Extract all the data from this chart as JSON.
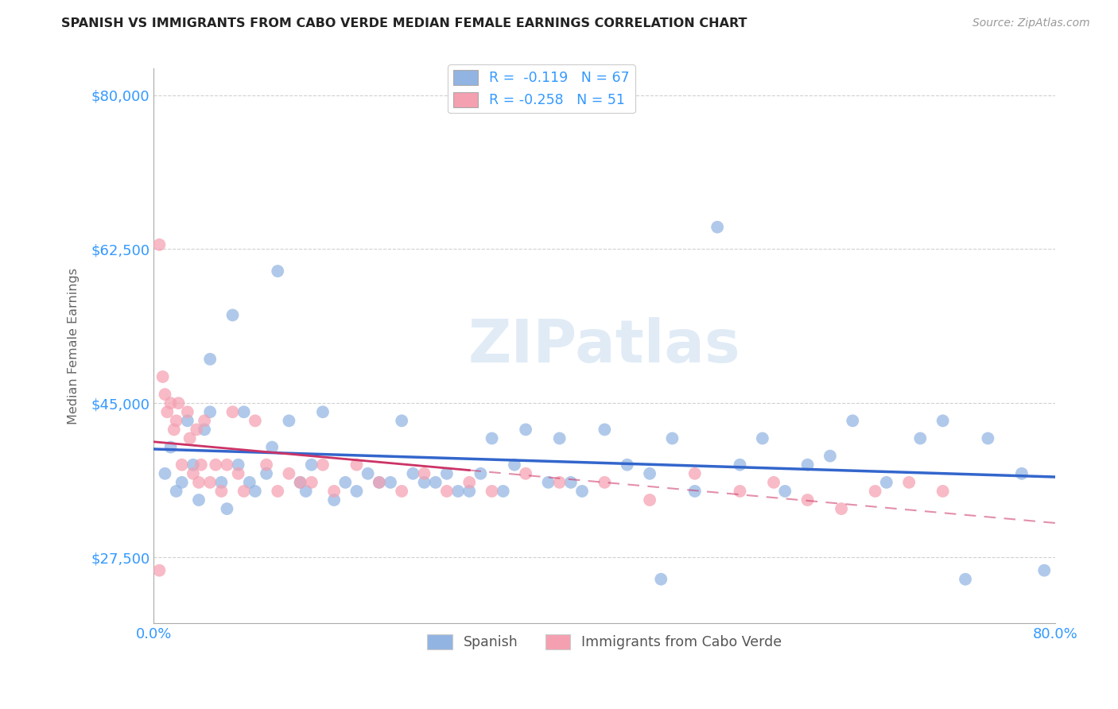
{
  "title": "SPANISH VS IMMIGRANTS FROM CABO VERDE MEDIAN FEMALE EARNINGS CORRELATION CHART",
  "source": "Source: ZipAtlas.com",
  "ylabel": "Median Female Earnings",
  "xlim": [
    0.0,
    0.8
  ],
  "ylim": [
    20000,
    83000
  ],
  "yticks": [
    27500,
    45000,
    62500,
    80000
  ],
  "ytick_labels": [
    "$27,500",
    "$45,000",
    "$62,500",
    "$80,000"
  ],
  "xtick_labels": [
    "0.0%",
    "80.0%"
  ],
  "watermark": "ZIPatlas",
  "background_color": "#ffffff",
  "grid_color": "#cccccc",
  "spanish_color": "#92b4e3",
  "cabo_verde_color": "#f4a0b0",
  "spanish_line_color": "#3366cc",
  "cabo_verde_line_color": "#cc3366",
  "tick_color": "#3399ff",
  "legend_label_spanish": "Spanish",
  "legend_label_cabo": "Immigrants from Cabo Verde",
  "spanish_x": [
    0.01,
    0.015,
    0.02,
    0.025,
    0.03,
    0.035,
    0.04,
    0.045,
    0.05,
    0.05,
    0.06,
    0.065,
    0.07,
    0.075,
    0.08,
    0.085,
    0.09,
    0.1,
    0.105,
    0.11,
    0.12,
    0.13,
    0.135,
    0.14,
    0.15,
    0.16,
    0.17,
    0.18,
    0.19,
    0.2,
    0.21,
    0.22,
    0.23,
    0.24,
    0.25,
    0.26,
    0.27,
    0.28,
    0.29,
    0.3,
    0.31,
    0.32,
    0.33,
    0.35,
    0.36,
    0.37,
    0.38,
    0.4,
    0.42,
    0.44,
    0.45,
    0.46,
    0.48,
    0.5,
    0.52,
    0.54,
    0.56,
    0.58,
    0.6,
    0.62,
    0.65,
    0.68,
    0.7,
    0.72,
    0.74,
    0.77,
    0.79
  ],
  "spanish_y": [
    37000,
    40000,
    35000,
    36000,
    43000,
    38000,
    34000,
    42000,
    50000,
    44000,
    36000,
    33000,
    55000,
    38000,
    44000,
    36000,
    35000,
    37000,
    40000,
    60000,
    43000,
    36000,
    35000,
    38000,
    44000,
    34000,
    36000,
    35000,
    37000,
    36000,
    36000,
    43000,
    37000,
    36000,
    36000,
    37000,
    35000,
    35000,
    37000,
    41000,
    35000,
    38000,
    42000,
    36000,
    41000,
    36000,
    35000,
    42000,
    38000,
    37000,
    25000,
    41000,
    35000,
    65000,
    38000,
    41000,
    35000,
    38000,
    39000,
    43000,
    36000,
    41000,
    43000,
    25000,
    41000,
    37000,
    26000
  ],
  "cabo_x": [
    0.005,
    0.008,
    0.01,
    0.012,
    0.015,
    0.018,
    0.02,
    0.022,
    0.025,
    0.03,
    0.032,
    0.035,
    0.038,
    0.04,
    0.042,
    0.045,
    0.05,
    0.055,
    0.06,
    0.065,
    0.07,
    0.075,
    0.08,
    0.09,
    0.1,
    0.11,
    0.12,
    0.13,
    0.14,
    0.15,
    0.16,
    0.18,
    0.2,
    0.22,
    0.24,
    0.26,
    0.28,
    0.3,
    0.33,
    0.36,
    0.4,
    0.44,
    0.48,
    0.52,
    0.55,
    0.58,
    0.61,
    0.64,
    0.67,
    0.7,
    0.005
  ],
  "cabo_y": [
    63000,
    48000,
    46000,
    44000,
    45000,
    42000,
    43000,
    45000,
    38000,
    44000,
    41000,
    37000,
    42000,
    36000,
    38000,
    43000,
    36000,
    38000,
    35000,
    38000,
    44000,
    37000,
    35000,
    43000,
    38000,
    35000,
    37000,
    36000,
    36000,
    38000,
    35000,
    38000,
    36000,
    35000,
    37000,
    35000,
    36000,
    35000,
    37000,
    36000,
    36000,
    34000,
    37000,
    35000,
    36000,
    34000,
    33000,
    35000,
    36000,
    35000,
    26000
  ]
}
